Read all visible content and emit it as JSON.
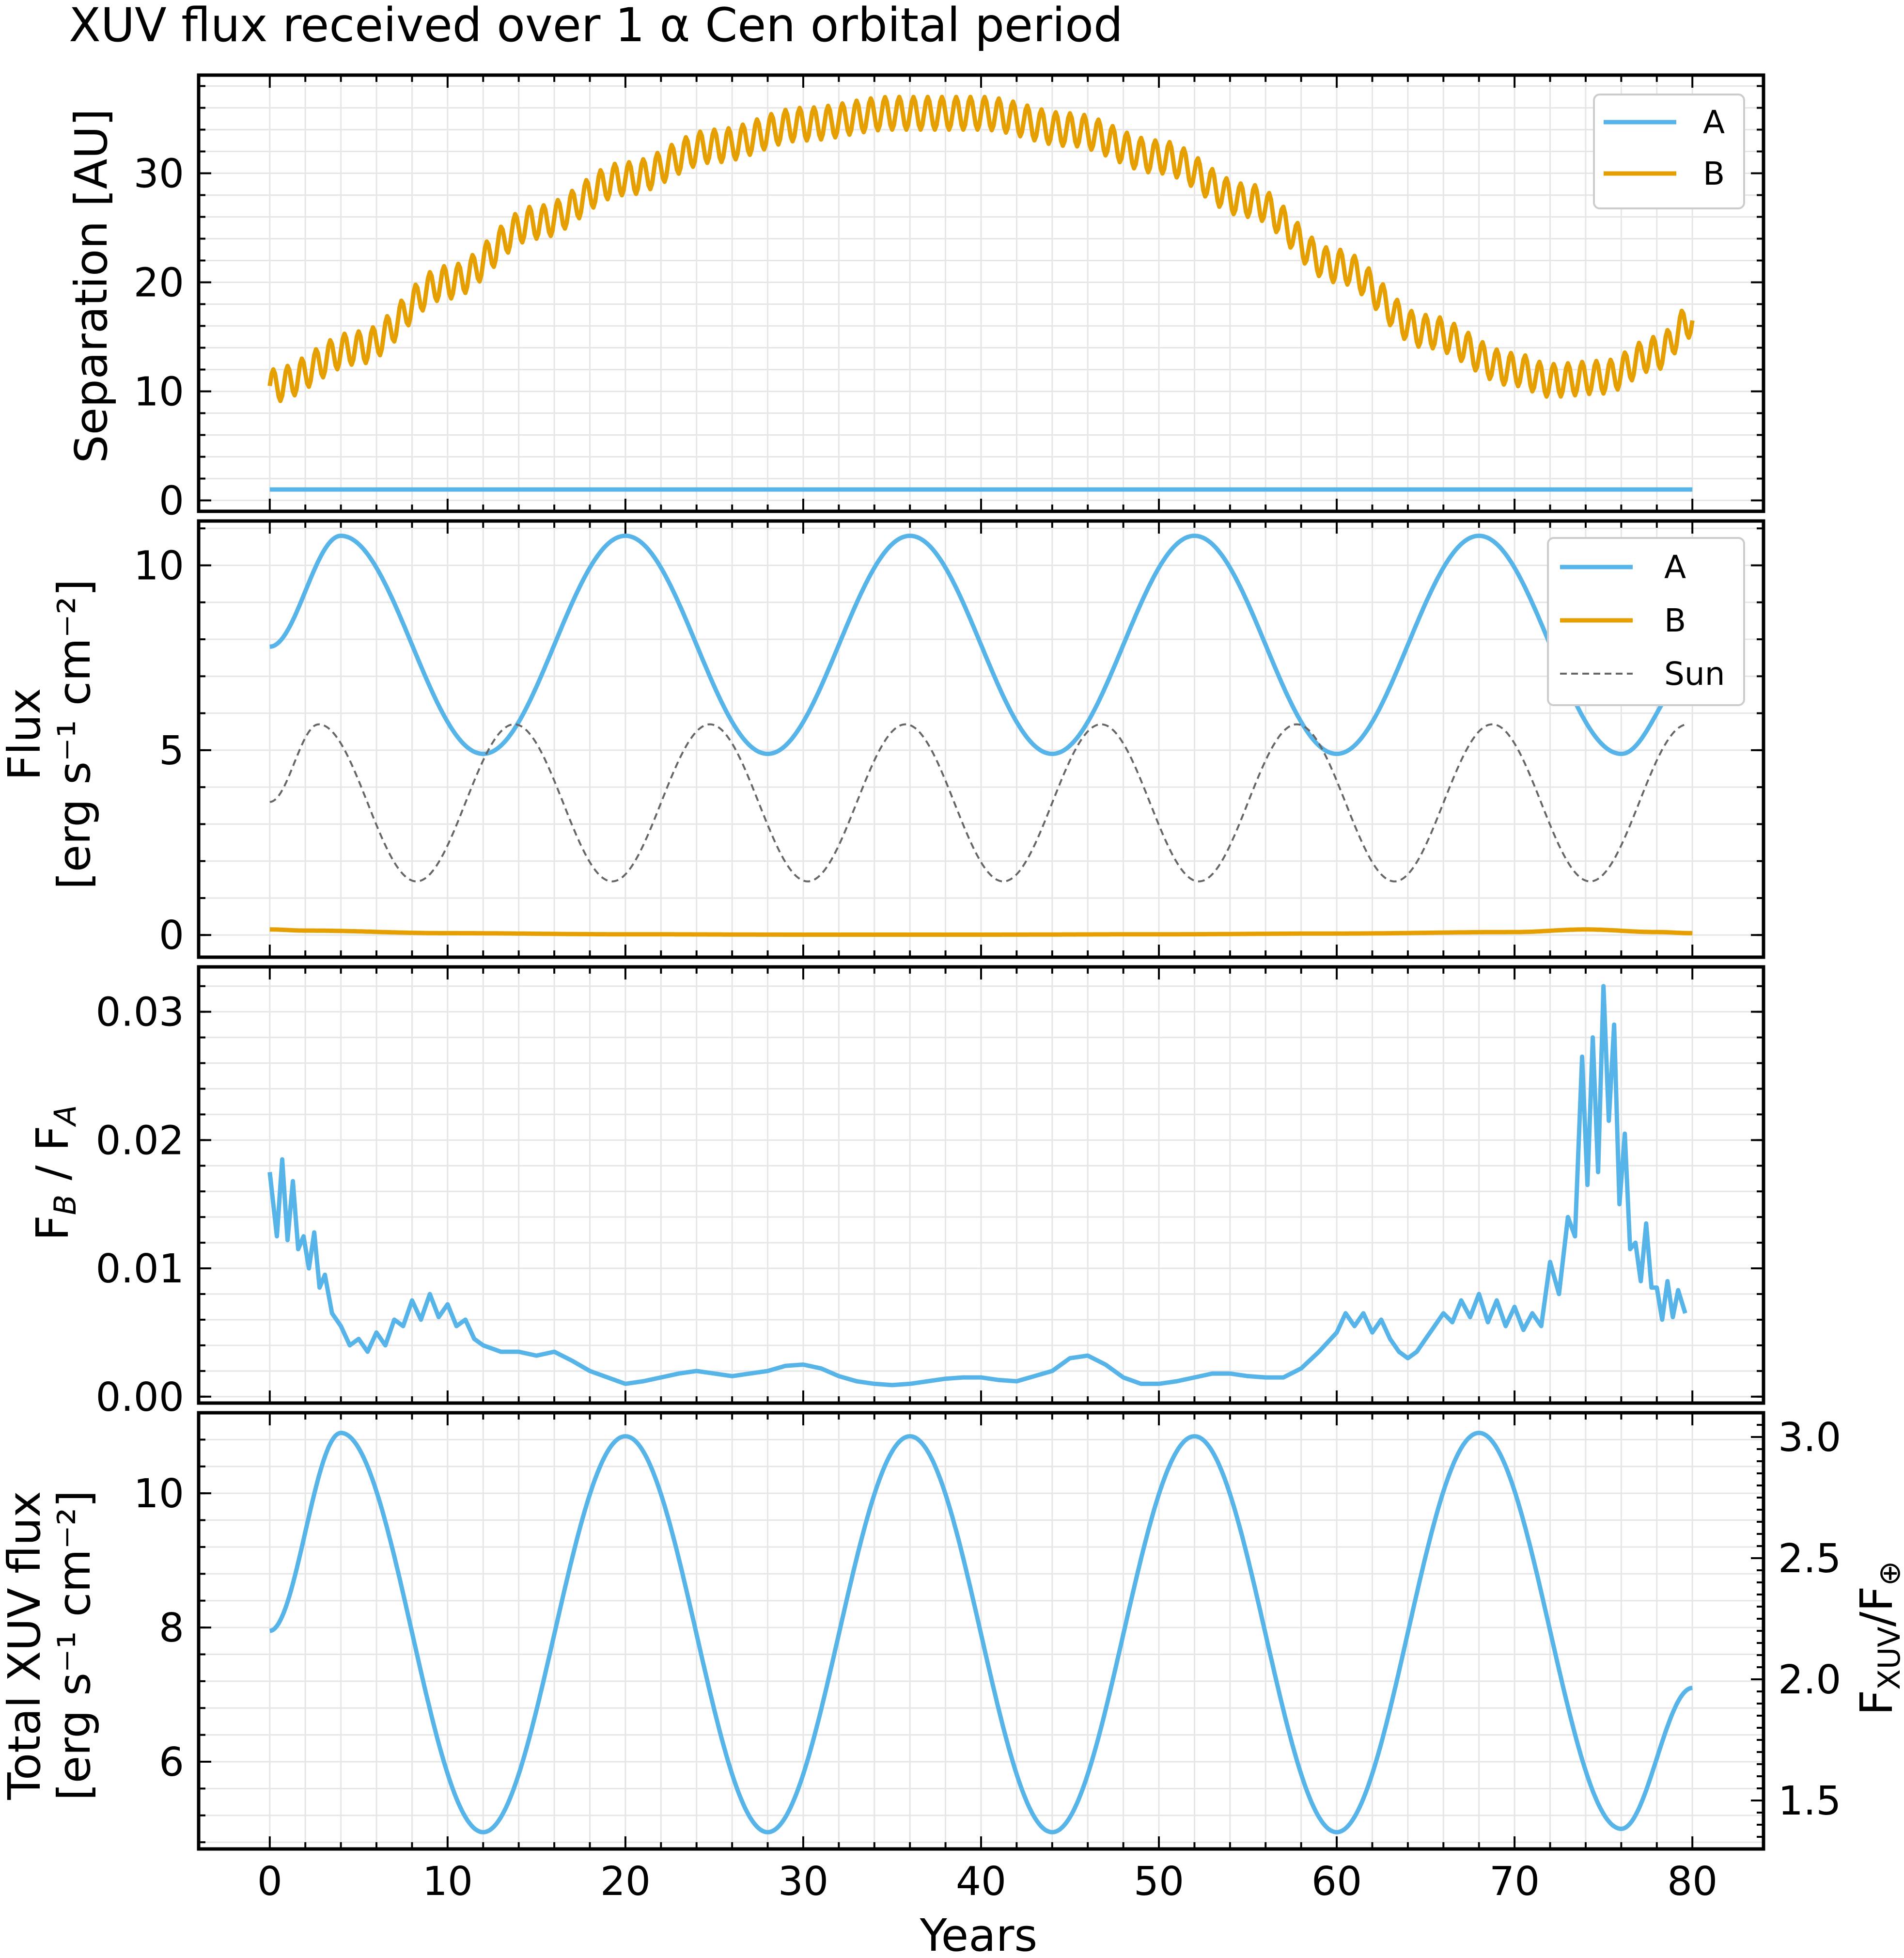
{
  "title": "XUV flux received over 1 α Cen orbital period",
  "colors": {
    "A": "#56B4E9",
    "B": "#E69F00",
    "Sun": "#666666",
    "axes": "#000000",
    "grid": "#e6e6e6"
  },
  "chart_data": [
    {
      "id": "separation",
      "type": "line",
      "ylabel": "Separation [AU]",
      "xlim": [
        -4,
        84
      ],
      "ylim": [
        -1,
        39
      ],
      "yticks": [
        0,
        10,
        20,
        30
      ],
      "legend": {
        "position": "top-right",
        "entries": [
          "A",
          "B"
        ]
      },
      "grid": true,
      "series": [
        {
          "name": "A",
          "x": [
            0,
            80
          ],
          "y": [
            1,
            1
          ]
        },
        {
          "name": "B",
          "x": [
            0,
            5,
            10,
            15,
            20,
            25,
            30,
            35,
            40,
            45,
            50,
            55,
            60,
            65,
            70,
            72,
            75,
            78,
            80
          ],
          "y": [
            10.5,
            14,
            20,
            25.5,
            29.5,
            32.5,
            34.5,
            35.5,
            35.5,
            34,
            31.5,
            27.5,
            21.5,
            15.5,
            12,
            11,
            11.3,
            13.5,
            16.5
          ],
          "ripple": {
            "amplitude": 1.5,
            "period_years": 0.8
          }
        }
      ]
    },
    {
      "id": "flux",
      "type": "line",
      "ylabel_line1": "Flux",
      "ylabel_line2": "[erg s⁻¹ cm⁻²]",
      "xlim": [
        -4,
        84
      ],
      "ylim": [
        -0.6,
        11.2
      ],
      "yticks": [
        0,
        5,
        10
      ],
      "legend": {
        "position": "top-right",
        "entries": [
          "A",
          "B",
          "Sun"
        ]
      },
      "grid": true,
      "series": [
        {
          "name": "A",
          "x": [
            0,
            4,
            12,
            20,
            28,
            36,
            44,
            52,
            60,
            68,
            76,
            80
          ],
          "y": [
            7.8,
            10.8,
            4.9,
            10.8,
            4.9,
            10.8,
            4.9,
            10.8,
            4.9,
            10.8,
            4.9,
            7.1
          ]
        },
        {
          "name": "B",
          "x": [
            0,
            2,
            10,
            20,
            30,
            40,
            50,
            60,
            70,
            74,
            78,
            80
          ],
          "y": [
            0.15,
            0.12,
            0.05,
            0.02,
            0.01,
            0.01,
            0.02,
            0.04,
            0.08,
            0.15,
            0.08,
            0.05
          ]
        },
        {
          "name": "Sun",
          "dashed": true,
          "x": [
            0,
            2.75,
            8.25,
            13.75,
            19.25,
            24.75,
            30.25,
            35.75,
            41.25,
            46.75,
            52.25,
            57.75,
            63.25,
            68.75,
            74.25,
            79.75
          ],
          "y": [
            3.6,
            5.7,
            1.45,
            5.7,
            1.45,
            5.7,
            1.45,
            5.7,
            1.45,
            5.7,
            1.45,
            5.7,
            1.45,
            5.7,
            1.45,
            5.7
          ]
        }
      ]
    },
    {
      "id": "ratio",
      "type": "line",
      "ylabel": "F_B / F_A",
      "xlim": [
        -4,
        84
      ],
      "ylim": [
        -0.0005,
        0.0335
      ],
      "yticks": [
        0.0,
        0.01,
        0.02,
        0.03
      ],
      "yticklabels": [
        "0.00",
        "0.01",
        "0.02",
        "0.03"
      ],
      "grid": true,
      "series": [
        {
          "name": "A",
          "x": [
            0,
            0.4,
            0.7,
            1.0,
            1.3,
            1.6,
            1.9,
            2.2,
            2.5,
            2.8,
            3.1,
            3.5,
            4.0,
            4.5,
            5.0,
            5.5,
            6.0,
            6.5,
            7.0,
            7.5,
            8.0,
            8.5,
            9.0,
            9.5,
            10.0,
            10.5,
            11.0,
            11.5,
            12.0,
            13,
            14,
            15,
            16,
            17,
            18,
            19,
            20,
            21,
            22,
            23,
            24,
            25,
            26,
            27,
            28,
            29,
            30,
            31,
            32,
            33,
            34,
            35,
            36,
            37,
            38,
            39,
            40,
            41,
            42,
            43,
            44,
            45,
            46,
            47,
            48,
            49,
            50,
            51,
            52,
            53,
            54,
            55,
            56,
            57,
            58,
            59,
            60,
            60.5,
            61,
            61.5,
            62,
            62.5,
            63,
            63.5,
            64,
            64.5,
            65,
            65.5,
            66,
            66.5,
            67,
            67.5,
            68,
            68.5,
            69,
            69.5,
            70,
            70.5,
            71,
            71.5,
            72,
            72.5,
            73,
            73.4,
            73.8,
            74.1,
            74.4,
            74.7,
            75.0,
            75.3,
            75.6,
            75.9,
            76.2,
            76.5,
            76.8,
            77.1,
            77.4,
            77.7,
            78.0,
            78.3,
            78.6,
            78.9,
            79.2,
            79.6
          ],
          "y": [
            0.0175,
            0.0125,
            0.0185,
            0.0122,
            0.0168,
            0.0115,
            0.0125,
            0.01,
            0.0128,
            0.0085,
            0.0095,
            0.0065,
            0.0055,
            0.004,
            0.0045,
            0.0035,
            0.005,
            0.004,
            0.006,
            0.0055,
            0.0075,
            0.006,
            0.008,
            0.0062,
            0.0072,
            0.0055,
            0.006,
            0.0045,
            0.004,
            0.0035,
            0.0035,
            0.0032,
            0.0035,
            0.0028,
            0.002,
            0.0015,
            0.001,
            0.0012,
            0.0015,
            0.0018,
            0.002,
            0.0018,
            0.0016,
            0.0018,
            0.002,
            0.0024,
            0.0025,
            0.0022,
            0.0016,
            0.0012,
            0.001,
            0.0009,
            0.001,
            0.0012,
            0.0014,
            0.0015,
            0.0015,
            0.0013,
            0.0012,
            0.0016,
            0.002,
            0.003,
            0.0032,
            0.0025,
            0.0015,
            0.001,
            0.001,
            0.0012,
            0.0015,
            0.0018,
            0.0018,
            0.0016,
            0.0015,
            0.0015,
            0.0022,
            0.0035,
            0.005,
            0.0065,
            0.0055,
            0.0065,
            0.005,
            0.006,
            0.0045,
            0.0035,
            0.003,
            0.0035,
            0.0045,
            0.0055,
            0.0065,
            0.0058,
            0.0075,
            0.0062,
            0.008,
            0.0058,
            0.0075,
            0.0055,
            0.007,
            0.0052,
            0.0065,
            0.0055,
            0.0105,
            0.008,
            0.014,
            0.0125,
            0.0265,
            0.0165,
            0.028,
            0.0175,
            0.032,
            0.0215,
            0.029,
            0.015,
            0.0205,
            0.0115,
            0.012,
            0.009,
            0.0135,
            0.0085,
            0.0085,
            0.006,
            0.009,
            0.0062,
            0.0083,
            0.0065
          ]
        }
      ]
    },
    {
      "id": "total",
      "type": "line",
      "ylabel_line1": "Total XUV flux",
      "ylabel_line2": "[erg s⁻¹ cm⁻²]",
      "xlabel": "Years",
      "xlim": [
        -4,
        84
      ],
      "ylim": [
        4.7,
        11.2
      ],
      "yticks": [
        6,
        8,
        10
      ],
      "xticks": [
        0,
        10,
        20,
        30,
        40,
        50,
        60,
        70,
        80
      ],
      "grid": true,
      "secondary_y": {
        "label": "F_XUV/F_⊕",
        "ticks": [
          1.5,
          2.0,
          2.5,
          3.0
        ],
        "ticklabels": [
          "1.5",
          "2.0",
          "2.5",
          "3.0"
        ],
        "lim": [
          1.3,
          3.1
        ]
      },
      "series": [
        {
          "name": "total",
          "x": [
            0,
            4,
            12,
            20,
            28,
            36,
            44,
            52,
            60,
            68,
            76,
            80
          ],
          "y": [
            7.95,
            10.9,
            4.95,
            10.85,
            4.95,
            10.85,
            4.95,
            10.85,
            4.95,
            10.9,
            5.0,
            7.1
          ]
        }
      ]
    }
  ],
  "legend_labels": {
    "A": "A",
    "B": "B",
    "Sun": "Sun"
  }
}
